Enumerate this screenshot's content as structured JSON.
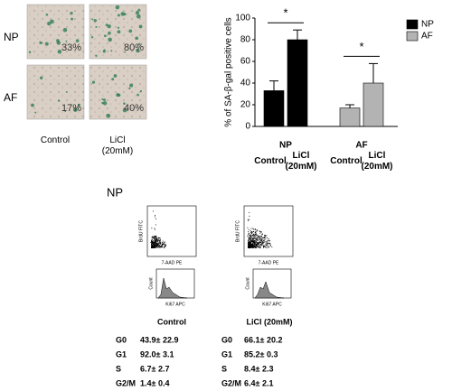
{
  "micrographs": {
    "rows": [
      {
        "label": "NP",
        "labels": [
          "33%",
          "80%"
        ]
      },
      {
        "label": "AF",
        "labels": [
          "17%",
          "40%"
        ]
      }
    ],
    "columns": [
      "Control",
      "LiCl (20mM)"
    ]
  },
  "chart_data": {
    "type": "bar",
    "ylabel": "% of SA-β-gal positive cells",
    "categories": [
      "Control",
      "LiCl (20mM)"
    ],
    "series": [
      {
        "name": "NP",
        "color": "#000000",
        "values": [
          33,
          80
        ],
        "errors": [
          9,
          9
        ]
      },
      {
        "name": "AF",
        "color": "#b3b3b3",
        "values": [
          17,
          40
        ],
        "errors": [
          3,
          18
        ]
      }
    ],
    "ylim": [
      0,
      100
    ],
    "yticks": [
      0,
      20,
      40,
      60,
      80,
      100
    ],
    "legend": "right",
    "annotations": [
      "*",
      "*"
    ]
  },
  "flow": {
    "title": "NP",
    "dot_xlabel": "7-AAD PE",
    "dot_ylabel": "BrdU FITC",
    "hist_xlabel": "Ki67 APC",
    "hist_ylabel": "Count",
    "tables": [
      {
        "title": "Control",
        "rows": [
          [
            "G0",
            "43.9± 22.9"
          ],
          [
            "G1",
            "92.0± 3.1"
          ],
          [
            "S",
            "6.7± 2.7"
          ],
          [
            "G2/M",
            "1.4± 0.4"
          ]
        ]
      },
      {
        "title": "LiCl (20mM)",
        "rows": [
          [
            "G0",
            "66.1± 20.2"
          ],
          [
            "G1",
            "85.2± 0.3"
          ],
          [
            "S",
            "8.4± 2.3"
          ],
          [
            "G2/M",
            "6.4± 2.1"
          ]
        ]
      }
    ]
  }
}
